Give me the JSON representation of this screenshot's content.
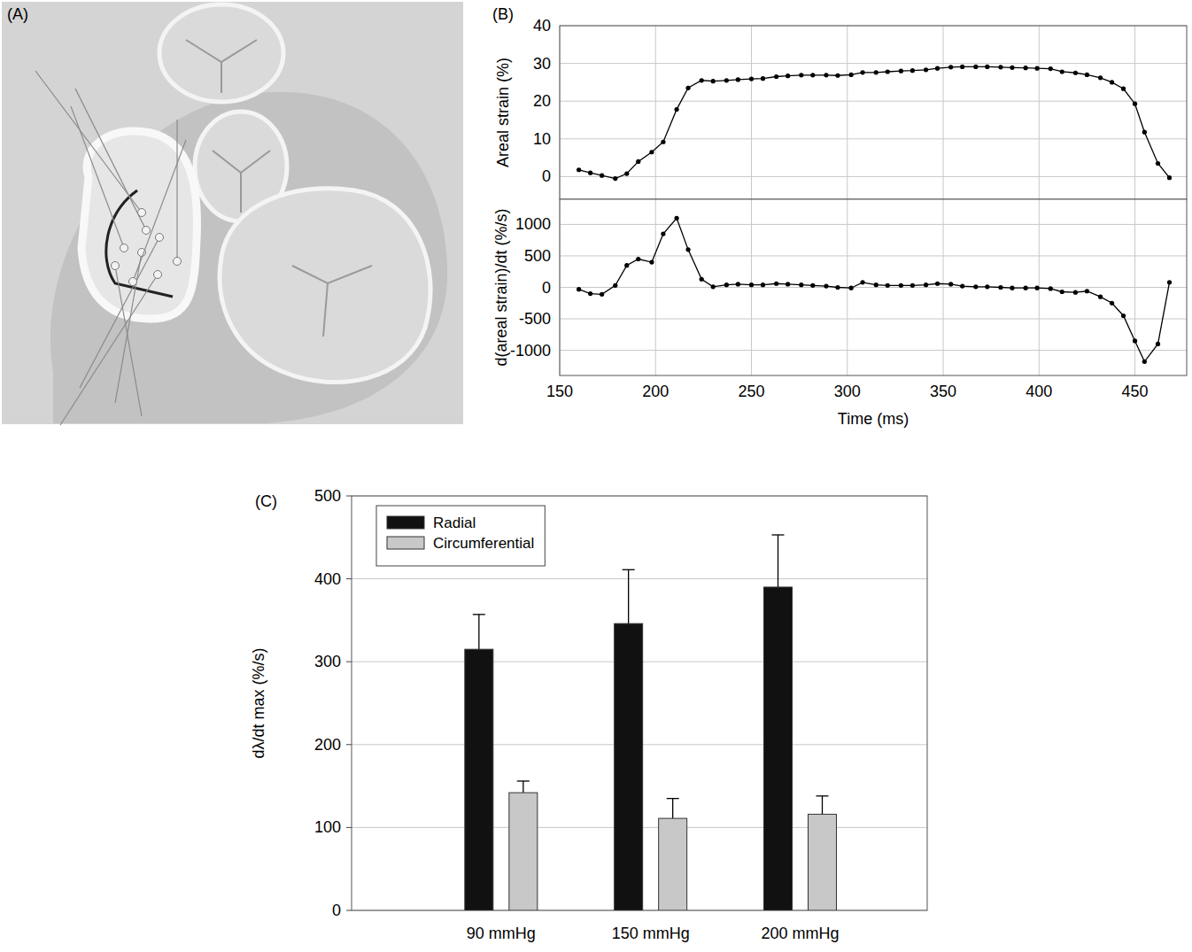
{
  "illustration": {
    "label": "(A)"
  },
  "chart_data": [
    {
      "type": "line",
      "panel": "(B)",
      "y_label": "Areal strain (%)",
      "x": [
        160,
        166,
        172,
        179,
        185,
        191,
        198,
        204,
        211,
        217,
        224,
        230,
        237,
        243,
        250,
        256,
        263,
        269,
        276,
        282,
        289,
        295,
        302,
        308,
        315,
        321,
        328,
        334,
        341,
        347,
        354,
        360,
        367,
        373,
        380,
        386,
        393,
        399,
        406,
        412,
        419,
        425,
        432,
        438,
        444,
        450,
        455,
        462,
        468
      ],
      "values": [
        1.8,
        1.0,
        0.3,
        -0.5,
        0.8,
        4.0,
        6.5,
        9.2,
        17.8,
        23.5,
        25.5,
        25.3,
        25.5,
        25.7,
        25.9,
        26.0,
        26.5,
        26.7,
        26.9,
        26.9,
        26.9,
        26.8,
        27.0,
        27.6,
        27.6,
        27.8,
        28.0,
        28.1,
        28.3,
        28.7,
        29.0,
        29.1,
        29.1,
        29.1,
        29.0,
        28.9,
        28.8,
        28.7,
        28.6,
        27.8,
        27.5,
        27.0,
        26.2,
        25.0,
        23.3,
        19.3,
        11.8,
        3.5,
        -0.3
      ],
      "color": "#000000",
      "marker": "circle",
      "xlim": [
        150,
        477
      ],
      "xticks": [
        150,
        200,
        250,
        300,
        350,
        400,
        450
      ],
      "ylim": [
        -6,
        40
      ],
      "yticks": [
        0,
        10,
        20,
        30,
        40
      ],
      "grid": true,
      "tick_labels": "y"
    },
    {
      "type": "line",
      "y_label": "d(areal strain)/dt (%/s)",
      "x_label": "Time (ms)",
      "x": [
        160,
        166,
        172,
        179,
        185,
        191,
        198,
        204,
        211,
        217,
        224,
        230,
        237,
        243,
        250,
        256,
        263,
        269,
        276,
        282,
        289,
        295,
        302,
        308,
        315,
        321,
        328,
        334,
        341,
        347,
        354,
        360,
        367,
        373,
        380,
        386,
        393,
        399,
        406,
        412,
        419,
        425,
        432,
        438,
        444,
        450,
        455,
        462,
        468
      ],
      "values": [
        -30,
        -100,
        -110,
        30,
        350,
        450,
        400,
        850,
        1100,
        600,
        130,
        10,
        40,
        50,
        40,
        40,
        60,
        50,
        40,
        30,
        20,
        0,
        -10,
        80,
        40,
        30,
        30,
        30,
        40,
        60,
        50,
        20,
        10,
        10,
        0,
        -10,
        -10,
        -10,
        -20,
        -70,
        -80,
        -60,
        -150,
        -250,
        -450,
        -850,
        -1180,
        -900,
        80
      ],
      "color": "#000000",
      "marker": "circle",
      "xlim": [
        150,
        477
      ],
      "xticks": [
        150,
        200,
        250,
        300,
        350,
        400,
        450
      ],
      "ylim": [
        -1400,
        1400
      ],
      "yticks": [
        -1000,
        -500,
        0,
        500,
        1000
      ],
      "grid": true
    },
    {
      "type": "bar",
      "panel": "(C)",
      "y_label": "dλ/dt max (%/s)",
      "categories": [
        "90 mmHg",
        "150 mmHg",
        "200 mmHg"
      ],
      "series": [
        {
          "name": "Radial",
          "color": "#111111",
          "values": [
            315,
            346,
            390
          ],
          "errors": [
            42,
            65,
            63
          ]
        },
        {
          "name": "Circumferential",
          "color": "#c8c8c8",
          "values": [
            142,
            111,
            116
          ],
          "errors": [
            14,
            24,
            22
          ]
        }
      ],
      "ylim": [
        0,
        500
      ],
      "yticks": [
        0,
        100,
        200,
        300,
        400,
        500
      ],
      "grid": true,
      "legend": "upper left"
    }
  ]
}
